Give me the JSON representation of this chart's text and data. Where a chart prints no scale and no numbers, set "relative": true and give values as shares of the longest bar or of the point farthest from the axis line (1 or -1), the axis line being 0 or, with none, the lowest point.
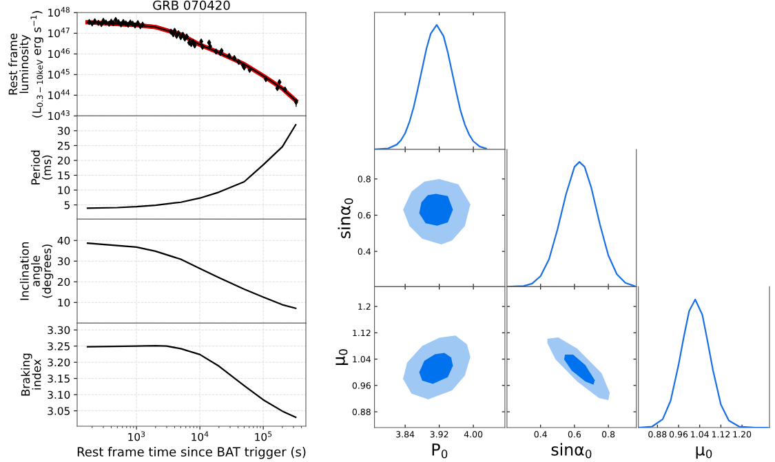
{
  "chart_data": [
    {
      "type": "line",
      "title": "GRB 070420",
      "ylabel": "Rest frame\nluminosity\n(L$_{0.3−10keV}$ erg s$^{−1}$)",
      "log": "xy",
      "grid": true,
      "tick_labels": "y",
      "xlim": [
        116,
        470000
      ],
      "xticks": [
        {
          "value": 1000,
          "label": null
        },
        {
          "value": 10000,
          "label": null
        },
        {
          "value": 100000,
          "label": null
        }
      ],
      "ylim": [
        1e+43,
        1e+48
      ],
      "yticks": [
        {
          "value": 1e+43,
          "label": "10$^{43}$"
        },
        {
          "value": 1e+44,
          "label": "10$^{44}$"
        },
        {
          "value": 1e+45,
          "label": "10$^{45}$"
        },
        {
          "value": 1e+46,
          "label": "10$^{46}$"
        },
        {
          "value": 1e+47,
          "label": "10$^{47}$"
        },
        {
          "value": 1e+48,
          "label": "10$^{48}$"
        }
      ],
      "series": [
        {
          "type": "scatter",
          "marker": "diamond",
          "color": "#000000",
          "x": [
            180,
            200,
            220,
            250,
            280,
            300,
            330,
            370,
            400,
            430,
            470,
            520,
            570,
            620,
            680,
            740,
            800,
            870,
            950,
            1050,
            1150,
            1250,
            3500,
            3800,
            4000,
            4300,
            4600,
            5000,
            5400,
            5800,
            6200,
            6800,
            7300,
            7800,
            8300,
            10500,
            11000,
            14000,
            14500,
            18000,
            21000,
            22000,
            29000,
            35000,
            41000,
            48000,
            50000,
            61000,
            110000,
            167000,
            180000,
            220000,
            330000
          ],
          "values": [
            3.5e+47,
            3e+47,
            3.8e+47,
            3.2e+47,
            2.8e+47,
            4e+47,
            3.3e+47,
            2.9e+47,
            3.6e+47,
            3.1e+47,
            4.4e+47,
            3.4e+47,
            2.7e+47,
            3.5e+47,
            3e+47,
            2.6e+47,
            3.3e+47,
            2.9e+47,
            2.4e+47,
            3.1e+47,
            2.2e+47,
            2.6e+47,
            1.2e+47,
            9e+46,
            1.3e+47,
            7.5e+46,
            1e+47,
            6.5e+46,
            8.5e+46,
            5.5e+46,
            7e+46,
            3.5e+46,
            3e+46,
            3.8e+46,
            2.6e+46,
            4e+46,
            2.2e+46,
            3.5e+46,
            2.3e+46,
            1.3e+46,
            1.1e+46,
            1.4e+46,
            8e+45,
            6.3e+45,
            4.1e+45,
            2.8e+45,
            2.2e+45,
            1.7e+45,
            6e+44,
            2.2e+44,
            4.3e+44,
            1.9e+44,
            4.7e+43
          ],
          "errors": [
            7e+46,
            6e+46,
            8e+46,
            6e+46,
            6e+46,
            8e+46,
            7e+46,
            6e+46,
            7e+46,
            6e+46,
            9e+46,
            7e+46,
            5e+46,
            7e+46,
            6e+46,
            5e+46,
            7e+46,
            6e+46,
            5e+46,
            6e+46,
            4e+46,
            5e+46,
            2.4e+46,
            1.8e+46,
            2.6e+46,
            1.5e+46,
            2e+46,
            1.3e+46,
            1.7e+46,
            1.1e+46,
            1.4e+46,
            7e+45,
            6e+45,
            8e+45,
            5e+45,
            8e+45,
            4e+45,
            7e+45,
            5e+45,
            3e+45,
            2e+45,
            3e+45,
            1.6e+45,
            1.3e+45,
            8e+44,
            6e+44,
            4e+44,
            3e+44,
            1.2e+44,
            4e+43,
            9e+43,
            4e+43,
            2e+43
          ]
        },
        {
          "type": "line",
          "color": "#e00000",
          "x": [
            169,
            500,
            1000,
            2000,
            5000,
            10000,
            20000,
            50000,
            100000,
            200000,
            325000
          ],
          "values": [
            3.4e+47,
            2.8e+47,
            2.5e+47,
            2e+47,
            8.7e+46,
            2.8e+46,
            1.15e+46,
            3.2e+45,
            8.7e+44,
            2.1e+44,
            5.5e+43
          ],
          "lower": [
            2.7e+47,
            2.2e+47,
            2e+47,
            1.6e+47,
            7e+46,
            2.2e+46,
            9.2e+45,
            2.6e+45,
            7e+44,
            1.7e+44,
            4.4e+43
          ],
          "upper": [
            4.2e+47,
            3.5e+47,
            3.1e+47,
            2.5e+47,
            1.09e+47,
            3.5e+46,
            1.44e+46,
            4e+45,
            1.09e+45,
            2.6e+44,
            6.9e+43
          ]
        },
        {
          "type": "line",
          "color": "#000000",
          "x": [
            169,
            500,
            1000,
            2000,
            5000,
            10000,
            20000,
            50000,
            100000,
            200000,
            325000
          ],
          "values": [
            3.4e+47,
            2.8e+47,
            2.5e+47,
            2e+47,
            8.7e+46,
            2.8e+46,
            1.15e+46,
            3.2e+45,
            8.7e+44,
            2.1e+44,
            5.5e+43
          ]
        }
      ]
    },
    {
      "type": "line",
      "ylabel": "Period\n(ms)",
      "log": "x",
      "grid": true,
      "tick_labels": "y",
      "xlim": [
        116,
        470000
      ],
      "xticks": [
        {
          "value": 1000,
          "label": null
        },
        {
          "value": 10000,
          "label": null
        },
        {
          "value": 100000,
          "label": null
        }
      ],
      "ylim": [
        0.2,
        35
      ],
      "yticks": [
        5,
        10,
        15,
        20,
        25,
        30
      ],
      "series": [
        {
          "color": "#000000",
          "x": [
            169,
            500,
            1000,
            2000,
            5000,
            10000,
            20000,
            50000,
            100000,
            200000,
            325000
          ],
          "values": [
            3.9,
            4.1,
            4.4,
            4.9,
            5.9,
            7.3,
            9.3,
            12.8,
            18.5,
            24.6,
            32.0
          ]
        }
      ]
    },
    {
      "type": "line",
      "ylabel": "Inclination\nangle\n(degrees)",
      "log": "x",
      "grid": true,
      "tick_labels": "y",
      "xlim": [
        116,
        470000
      ],
      "xticks": [
        {
          "value": 1000,
          "label": null
        },
        {
          "value": 10000,
          "label": null
        },
        {
          "value": 100000,
          "label": null
        }
      ],
      "ylim": [
        0,
        50.3
      ],
      "yticks": [
        10,
        20,
        30,
        40
      ],
      "series": [
        {
          "color": "#000000",
          "x": [
            169,
            1000,
            2000,
            5000,
            10000,
            20000,
            50000,
            100000,
            200000,
            325000
          ],
          "values": [
            38.7,
            36.8,
            34.8,
            30.9,
            26.4,
            22.0,
            16.4,
            12.6,
            8.9,
            7.2
          ]
        }
      ]
    },
    {
      "type": "line",
      "ylabel": "Braking\nindex",
      "xlabel": "Rest frame time since BAT trigger (s)",
      "log": "x",
      "grid": true,
      "xlim": [
        116,
        470000
      ],
      "xticks": [
        {
          "value": 1000,
          "label": "10$^{3}$"
        },
        {
          "value": 10000,
          "label": "10$^{4}$"
        },
        {
          "value": 100000,
          "label": "10$^{5}$"
        }
      ],
      "ylim": [
        3.0025,
        3.321
      ],
      "yticks": [
        3.05,
        {
          "value": 3.1,
          "label": "3.10"
        },
        3.15,
        {
          "value": 3.2,
          "label": "3.20"
        },
        3.25,
        {
          "value": 3.3,
          "label": "3.30"
        }
      ],
      "series": [
        {
          "color": "#000000",
          "x": [
            169,
            1000,
            2000,
            3000,
            5000,
            10000,
            20000,
            50000,
            100000,
            200000,
            325000
          ],
          "values": [
            3.248,
            3.25,
            3.251,
            3.25,
            3.242,
            3.224,
            3.188,
            3.128,
            3.084,
            3.049,
            3.03
          ]
        }
      ]
    },
    {
      "type": "line",
      "relative": true,
      "tick_labels": false,
      "xlim": [
        3.768,
        4.074
      ],
      "xticks": [
        {
          "value": 3.84,
          "label": null
        },
        {
          "value": 3.92,
          "label": null
        },
        {
          "value": 4.0,
          "label": null
        }
      ],
      "series": [
        {
          "color": "#1a6fe6",
          "x": [
            3.768,
            3.8,
            3.82,
            3.83,
            3.84,
            3.85,
            3.86,
            3.87,
            3.88,
            3.89,
            3.9,
            3.914,
            3.93,
            3.94,
            3.95,
            3.96,
            3.97,
            3.98,
            3.99,
            4.0,
            4.015,
            4.03
          ],
          "values": [
            0.0004,
            0.008,
            0.038,
            0.073,
            0.13,
            0.22,
            0.34,
            0.49,
            0.65,
            0.81,
            0.93,
            1,
            0.91,
            0.78,
            0.62,
            0.46,
            0.31,
            0.2,
            0.12,
            0.065,
            0.023,
            0.007
          ]
        }
      ]
    },
    {
      "type": "area",
      "ylabel": "sinα$_{0}$",
      "tick_labels": "y",
      "xlim": [
        3.768,
        4.074
      ],
      "xticks": [
        {
          "value": 3.84,
          "label": null
        },
        {
          "value": 3.92,
          "label": null
        },
        {
          "value": 4.0,
          "label": null
        }
      ],
      "ylim": [
        0.205,
        0.963
      ],
      "yticks": [
        0.4,
        0.6,
        0.8
      ],
      "series": [
        {
          "color": "#a0c8f5",
          "x": [
            3.92,
            3.965,
            3.993,
            3.98,
            3.95,
            3.925,
            3.88,
            3.85,
            3.835,
            3.855,
            3.885,
            3.92
          ],
          "values": [
            0.8,
            0.77,
            0.66,
            0.54,
            0.46,
            0.438,
            0.47,
            0.54,
            0.63,
            0.73,
            0.785,
            0.8
          ]
        },
        {
          "color": "#0072ed",
          "x": [
            3.912,
            3.94,
            3.952,
            3.94,
            3.915,
            3.888,
            3.873,
            3.878,
            3.893,
            3.912
          ],
          "values": [
            0.718,
            0.705,
            0.63,
            0.56,
            0.542,
            0.555,
            0.61,
            0.67,
            0.71,
            0.718
          ]
        }
      ]
    },
    {
      "type": "line",
      "relative": true,
      "tick_labels": false,
      "xlim": [
        0.2016,
        0.965
      ],
      "xticks": [
        {
          "value": 0.4,
          "label": null
        },
        {
          "value": 0.6,
          "label": null
        },
        {
          "value": 0.8,
          "label": null
        }
      ],
      "series": [
        {
          "color": "#1a6fe6",
          "x": [
            0.2016,
            0.3,
            0.35,
            0.4,
            0.45,
            0.5,
            0.55,
            0.6,
            0.629,
            0.66,
            0.7,
            0.75,
            0.8,
            0.85,
            0.9,
            0.955
          ],
          "values": [
            0.0,
            0.006,
            0.025,
            0.085,
            0.22,
            0.46,
            0.74,
            0.96,
            1,
            0.96,
            0.79,
            0.5,
            0.25,
            0.1,
            0.031,
            0.005
          ]
        }
      ]
    },
    {
      "type": "area",
      "ylabel": "μ$_{0}$",
      "xlabel": "P$_{0}$",
      "xlim": [
        3.768,
        4.074
      ],
      "xticks": [
        3.84,
        3.92,
        {
          "value": 4.0,
          "label": "4.00"
        }
      ],
      "ylim": [
        0.832,
        1.26
      ],
      "yticks": [
        0.88,
        0.96,
        1.04,
        1.12,
        1.2
      ],
      "series": [
        {
          "color": "#a0c8f5",
          "x": [
            3.958,
            3.985,
            3.993,
            3.98,
            3.95,
            3.894,
            3.855,
            3.835,
            3.845,
            3.88,
            3.92,
            3.958
          ],
          "values": [
            1.112,
            1.085,
            1.047,
            0.99,
            0.945,
            0.918,
            0.935,
            0.98,
            1.03,
            1.08,
            1.105,
            1.112
          ]
        },
        {
          "color": "#0072ed",
          "x": [
            3.932,
            3.948,
            3.952,
            3.94,
            3.905,
            3.88,
            3.873,
            3.885,
            3.91,
            3.932
          ],
          "values": [
            1.059,
            1.045,
            1.02,
            0.985,
            0.965,
            0.975,
            1.0,
            1.035,
            1.055,
            1.059
          ]
        }
      ]
    },
    {
      "type": "area",
      "xlabel": "sinα$_{0}$",
      "tick_labels": "x",
      "xlim": [
        0.2016,
        0.965
      ],
      "xticks": [
        0.4,
        0.6,
        0.8
      ],
      "ylim": [
        0.832,
        1.26
      ],
      "yticks": [
        0.88,
        0.96,
        1.04,
        1.12,
        1.2
      ],
      "series": [
        {
          "color": "#a0c8f5",
          "x": [
            0.44,
            0.504,
            0.616,
            0.76,
            0.808,
            0.8,
            0.744,
            0.616,
            0.488,
            0.44,
            0.44
          ],
          "values": [
            1.102,
            1.106,
            1.072,
            0.997,
            0.938,
            0.915,
            0.922,
            0.972,
            1.039,
            1.089,
            1.102
          ]
        },
        {
          "color": "#0072ed",
          "x": [
            0.544,
            0.592,
            0.664,
            0.72,
            0.712,
            0.664,
            0.584,
            0.539,
            0.544
          ],
          "values": [
            1.054,
            1.054,
            1.022,
            0.976,
            0.962,
            0.972,
            1.005,
            1.039,
            1.054
          ]
        }
      ]
    },
    {
      "type": "line",
      "relative": true,
      "xlabel": "μ$_{0}$",
      "tick_labels": "x",
      "xlim": [
        0.808,
        1.304
      ],
      "xticks": [
        0.88,
        0.96,
        1.04,
        1.12,
        {
          "value": 1.2,
          "label": "1.20"
        }
      ],
      "series": [
        {
          "color": "#1a6fe6",
          "x": [
            0.808,
            0.86,
            0.9,
            0.93,
            0.96,
            0.98,
            1.0,
            1.023,
            1.05,
            1.07,
            1.09,
            1.12,
            1.15,
            1.19,
            1.25,
            1.297
          ],
          "values": [
            0.0,
            0.008,
            0.065,
            0.21,
            0.49,
            0.71,
            0.91,
            1,
            0.88,
            0.67,
            0.45,
            0.18,
            0.055,
            0.007,
            0.0,
            0.0
          ]
        }
      ]
    }
  ]
}
